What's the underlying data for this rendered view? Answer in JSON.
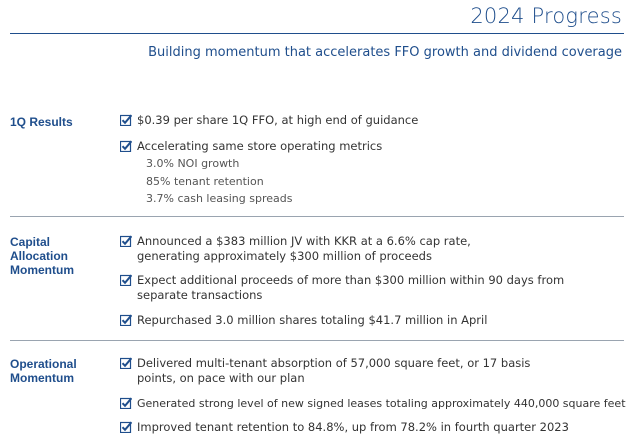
{
  "header": {
    "title": "2024 Progress",
    "subtitle": "Building momentum that accelerates FFO growth and dividend coverage"
  },
  "sections": [
    {
      "label": "1Q Results",
      "items": [
        {
          "text": "$0.39 per share 1Q FFO, at high end of guidance"
        },
        {
          "text": "Accelerating same store operating metrics",
          "sub": [
            "3.0% NOI growth",
            "85% tenant retention",
            "3.7% cash leasing spreads"
          ]
        }
      ]
    },
    {
      "label": "Capital\nAllocation\nMomentum",
      "items": [
        {
          "text": "Announced a $383 million JV with KKR at a 6.6% cap rate, generating approximately $300 million of proceeds"
        },
        {
          "text": "Expect additional proceeds of more than $300 million within 90 days from separate transactions"
        },
        {
          "text": "Repurchased 3.0 million shares totaling $41.7 million in April"
        }
      ]
    },
    {
      "label": "Operational\nMomentum",
      "items": [
        {
          "text": "Delivered multi-tenant absorption of 57,000 square feet, or 17 basis points, on pace with our plan"
        },
        {
          "text": "Generated strong level of new signed leases totaling approximately 440,000 square feet"
        },
        {
          "text": "Improved tenant retention to 84.8%, up from 78.2% in fourth quarter 2023"
        }
      ]
    }
  ],
  "colors": {
    "accent": "#1f4e8c",
    "rule": "#9aa4b0",
    "text": "#333333"
  },
  "icons": {
    "bullet": "checkbox-check-icon"
  }
}
